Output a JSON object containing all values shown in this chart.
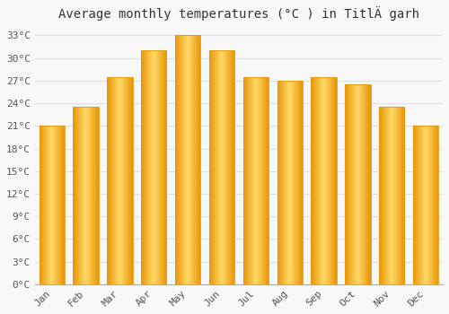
{
  "title": "Average monthly temperatures (°C ) in TitlÄ garh",
  "months": [
    "Jan",
    "Feb",
    "Mar",
    "Apr",
    "May",
    "Jun",
    "Jul",
    "Aug",
    "Sep",
    "Oct",
    "Nov",
    "Dec"
  ],
  "values": [
    21,
    23.5,
    27.5,
    31,
    33,
    31,
    27.5,
    27,
    27.5,
    26.5,
    23.5,
    21
  ],
  "bar_color_face": "#FFBE00",
  "bar_color_edge": "#E8960A",
  "bar_color_light": "#FFD966",
  "background_color": "#F8F8F8",
  "grid_color": "#E0E0E0",
  "ylim": [
    0,
    34
  ],
  "yticks": [
    0,
    3,
    6,
    9,
    12,
    15,
    18,
    21,
    24,
    27,
    30,
    33
  ],
  "ytick_labels": [
    "0°C",
    "3°C",
    "6°C",
    "9°C",
    "12°C",
    "15°C",
    "18°C",
    "21°C",
    "24°C",
    "27°C",
    "30°C",
    "33°C"
  ],
  "title_fontsize": 10,
  "tick_fontsize": 8,
  "font_family": "monospace",
  "tick_color": "#555555"
}
